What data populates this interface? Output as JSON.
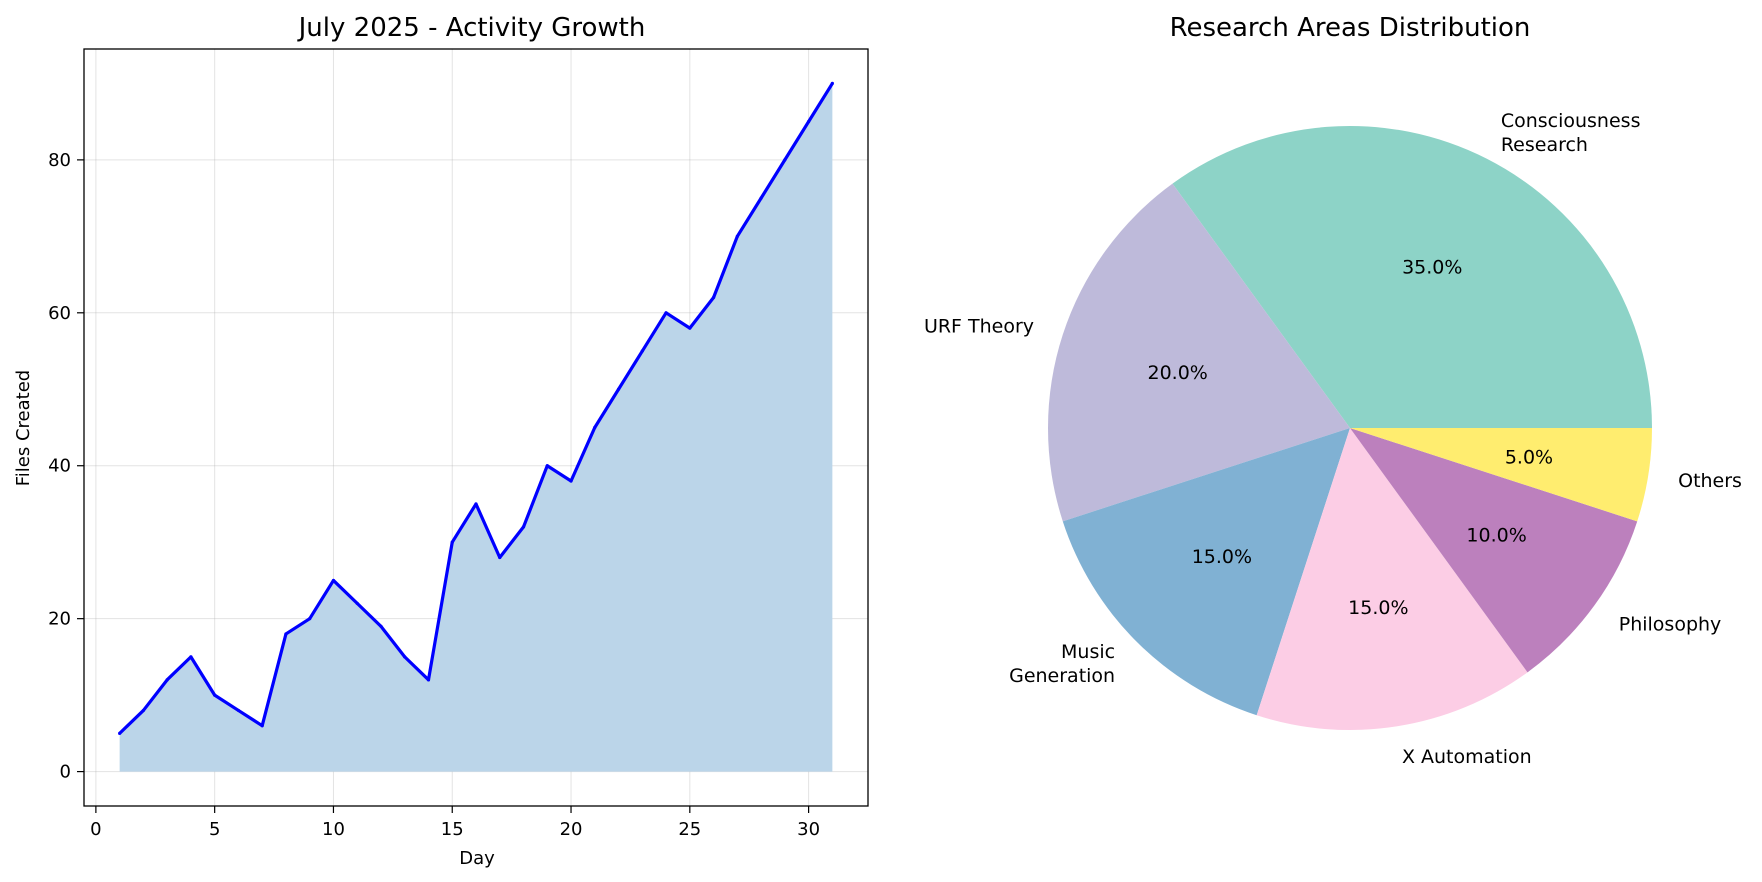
{
  "chart_data": [
    {
      "type": "area",
      "title": "July 2025 - Activity Growth",
      "xlabel": "Day",
      "ylabel": "Files Created",
      "xlim": [
        -0.5,
        32.5
      ],
      "ylim": [
        -4.5,
        94.5
      ],
      "xticks": [
        0,
        5,
        10,
        15,
        20,
        25,
        30
      ],
      "yticks": [
        0,
        20,
        40,
        60,
        80
      ],
      "grid": true,
      "line_color": "#0000ff",
      "fill_color": "#bbd5e9",
      "x": [
        1,
        2,
        3,
        4,
        5,
        6,
        7,
        8,
        9,
        10,
        11,
        12,
        13,
        14,
        15,
        16,
        17,
        18,
        19,
        20,
        21,
        22,
        23,
        24,
        25,
        26,
        27,
        28,
        29,
        30,
        31
      ],
      "values": [
        5,
        8,
        12,
        15,
        10,
        8,
        6,
        18,
        20,
        25,
        22,
        19,
        15,
        12,
        30,
        35,
        28,
        32,
        40,
        38,
        45,
        50,
        55,
        60,
        58,
        62,
        70,
        75,
        80,
        85,
        90
      ]
    },
    {
      "type": "pie",
      "title": "Research Areas Distribution",
      "slices": [
        {
          "label": "Consciousness Research",
          "label_lines": [
            "Consciousness",
            "Research"
          ],
          "value": 35,
          "pct": "35.0%",
          "color": "#8dd3c7"
        },
        {
          "label": "URF Theory",
          "label_lines": [
            "URF Theory"
          ],
          "value": 20,
          "pct": "20.0%",
          "color": "#bebada"
        },
        {
          "label": "Music Generation",
          "label_lines": [
            "Music",
            "Generation"
          ],
          "value": 15,
          "pct": "15.0%",
          "color": "#80b1d3"
        },
        {
          "label": "X Automation",
          "label_lines": [
            "X Automation"
          ],
          "value": 15,
          "pct": "15.0%",
          "color": "#fccde5"
        },
        {
          "label": "Philosophy",
          "label_lines": [
            "Philosophy"
          ],
          "value": 10,
          "pct": "10.0%",
          "color": "#bc80bd"
        },
        {
          "label": "Others",
          "label_lines": [
            "Others"
          ],
          "value": 5,
          "pct": "5.0%",
          "color": "#ffed6f"
        }
      ]
    }
  ]
}
